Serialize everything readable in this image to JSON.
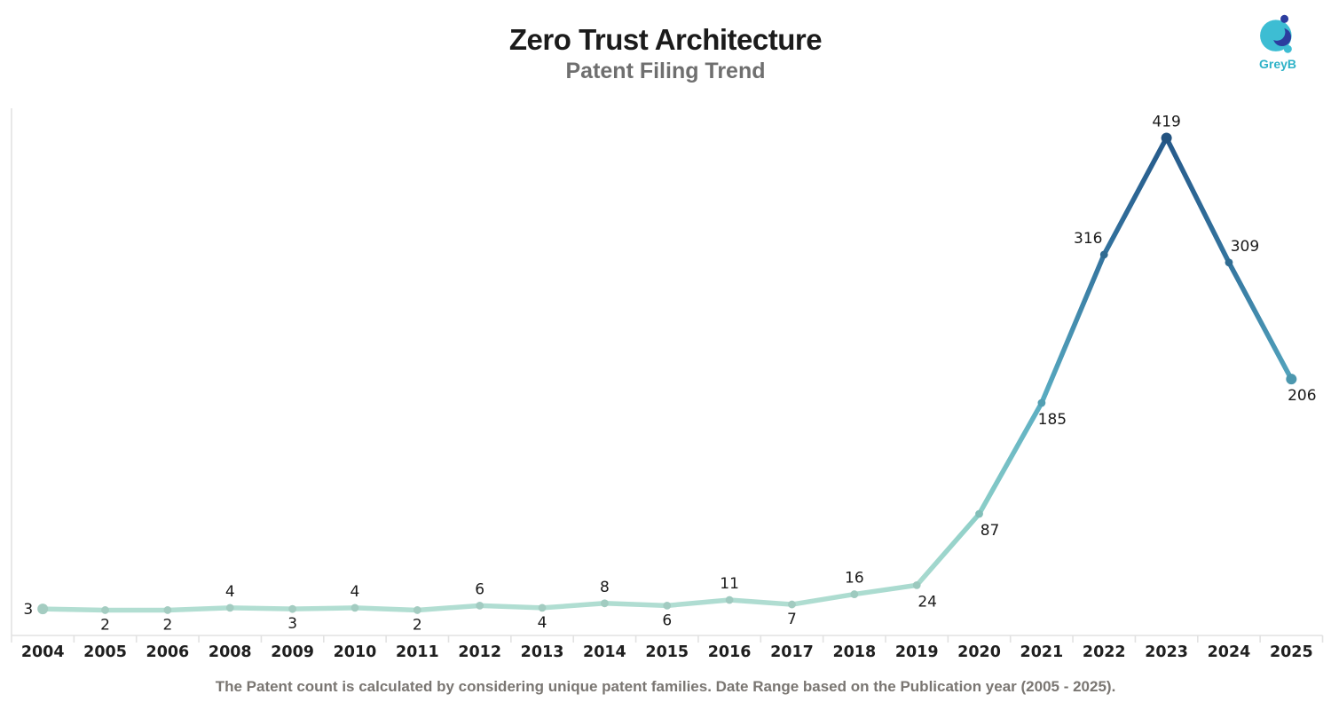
{
  "header": {
    "title": "Zero Trust Architecture",
    "subtitle": "Patent Filing Trend"
  },
  "logo": {
    "label": "GreyB",
    "teal": "#3dbdd3",
    "navy": "#2c3d9f",
    "text_color": "#2eb2c7"
  },
  "footer": {
    "note": "The Patent count is calculated by considering unique patent families. Date Range based on the Publication year (2005 - 2025)."
  },
  "chart_data": {
    "type": "line",
    "title": "Zero Trust Architecture",
    "subtitle": "Patent Filing Trend",
    "categories": [
      "2004",
      "2005",
      "2006",
      "2008",
      "2009",
      "2010",
      "2011",
      "2012",
      "2013",
      "2014",
      "2015",
      "2016",
      "2017",
      "2018",
      "2019",
      "2020",
      "2021",
      "2022",
      "2023",
      "2024",
      "2025"
    ],
    "values": [
      3,
      2,
      2,
      4,
      3,
      4,
      2,
      6,
      4,
      8,
      6,
      11,
      7,
      16,
      24,
      87,
      185,
      316,
      419,
      309,
      206
    ],
    "label_positions": [
      "left",
      "below",
      "below",
      "above",
      "below",
      "above",
      "below",
      "above",
      "below",
      "above",
      "below",
      "above",
      "below",
      "above",
      "below-right",
      "below-right",
      "below-right",
      "above-left",
      "above",
      "above-right",
      "below-right"
    ],
    "xlabel": "",
    "ylabel": "",
    "ylim": [
      0,
      445
    ],
    "grid": false,
    "legend": false,
    "colormap_stops": [
      [
        0.0,
        "#b2ded2"
      ],
      [
        0.2,
        "#8ed0c8"
      ],
      [
        0.45,
        "#58abc2"
      ],
      [
        0.74,
        "#34749f"
      ],
      [
        1.0,
        "#265a8b"
      ]
    ],
    "axis_color": "#e2e2e2",
    "data_label_color": "#1a1a1a",
    "axis_label_color": "#1f1f1f"
  }
}
